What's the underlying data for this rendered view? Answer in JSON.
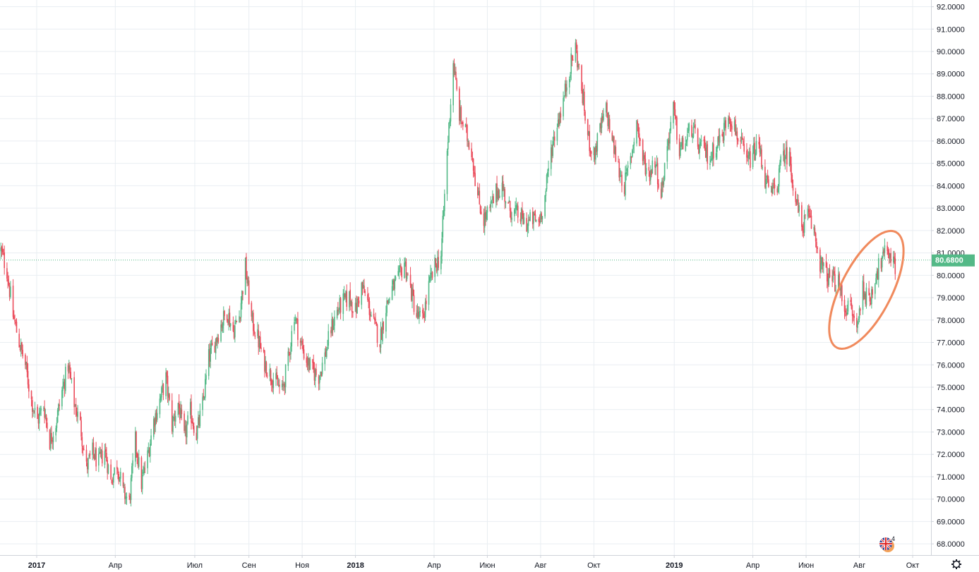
{
  "colors": {
    "up": "#53b987",
    "down": "#eb4d5c",
    "grid": "#e9eef2",
    "axis_line": "#cfd3da",
    "last_price_line": "#53b987",
    "annotation": "#f08a5d",
    "text": "#131722"
  },
  "last_price": {
    "value": 80.68,
    "label": "80.6800"
  },
  "flag_marker": {
    "icon": "uk-flag-icon",
    "count_label": "4"
  },
  "settings": {
    "icon": "gear-icon"
  },
  "chart_data": {
    "type": "candlestick",
    "x_axis": {
      "type": "date",
      "range": [
        "2016-11-20",
        "2019-10-22"
      ],
      "ticks": [
        {
          "date": "2017-01-01",
          "label": "2017",
          "bold": true
        },
        {
          "date": "2017-04-01",
          "label": "Апр",
          "bold": false
        },
        {
          "date": "2017-07-01",
          "label": "Июл",
          "bold": false
        },
        {
          "date": "2017-09-01",
          "label": "Сен",
          "bold": false
        },
        {
          "date": "2017-11-01",
          "label": "Ноя",
          "bold": false
        },
        {
          "date": "2018-01-01",
          "label": "2018",
          "bold": true
        },
        {
          "date": "2018-04-01",
          "label": "Апр",
          "bold": false
        },
        {
          "date": "2018-06-01",
          "label": "Июн",
          "bold": false
        },
        {
          "date": "2018-08-01",
          "label": "Авг",
          "bold": false
        },
        {
          "date": "2018-10-01",
          "label": "Окт",
          "bold": false
        },
        {
          "date": "2019-01-01",
          "label": "2019",
          "bold": true
        },
        {
          "date": "2019-04-01",
          "label": "Апр",
          "bold": false
        },
        {
          "date": "2019-06-01",
          "label": "Июн",
          "bold": false
        },
        {
          "date": "2019-08-01",
          "label": "Авг",
          "bold": false
        },
        {
          "date": "2019-10-01",
          "label": "Окт",
          "bold": false
        }
      ]
    },
    "y_axis": {
      "range": [
        67.5,
        92.3
      ],
      "position": "right",
      "ticks": [
        {
          "value": 68,
          "label": "68.0000"
        },
        {
          "value": 69,
          "label": "69.0000"
        },
        {
          "value": 70,
          "label": "70.0000"
        },
        {
          "value": 71,
          "label": "71.0000"
        },
        {
          "value": 72,
          "label": "72.0000"
        },
        {
          "value": 73,
          "label": "73.0000"
        },
        {
          "value": 74,
          "label": "74.0000"
        },
        {
          "value": 75,
          "label": "75.0000"
        },
        {
          "value": 76,
          "label": "76.0000"
        },
        {
          "value": 77,
          "label": "77.0000"
        },
        {
          "value": 78,
          "label": "78.0000"
        },
        {
          "value": 79,
          "label": "79.0000"
        },
        {
          "value": 80,
          "label": "80.0000"
        },
        {
          "value": 81,
          "label": "81.0000"
        },
        {
          "value": 82,
          "label": "82.0000"
        },
        {
          "value": 83,
          "label": "83.0000"
        },
        {
          "value": 84,
          "label": "84.0000"
        },
        {
          "value": 85,
          "label": "85.0000"
        },
        {
          "value": 86,
          "label": "86.0000"
        },
        {
          "value": 87,
          "label": "87.0000"
        },
        {
          "value": 88,
          "label": "88.0000"
        },
        {
          "value": 89,
          "label": "89.0000"
        },
        {
          "value": 90,
          "label": "90.0000"
        },
        {
          "value": 91,
          "label": "91.0000"
        },
        {
          "value": 92,
          "label": "92.0000"
        }
      ]
    },
    "grid": true,
    "price_path": [
      [
        "2016-11-21",
        81.1
      ],
      [
        "2016-11-28",
        80.2
      ],
      [
        "2016-12-05",
        78.2
      ],
      [
        "2016-12-12",
        77.0
      ],
      [
        "2016-12-19",
        76.0
      ],
      [
        "2016-12-26",
        74.4
      ],
      [
        "2017-01-02",
        73.5
      ],
      [
        "2017-01-09",
        74.2
      ],
      [
        "2017-01-16",
        72.6
      ],
      [
        "2017-01-23",
        73.4
      ],
      [
        "2017-01-30",
        74.8
      ],
      [
        "2017-02-06",
        76.0
      ],
      [
        "2017-02-13",
        74.3
      ],
      [
        "2017-02-20",
        73.3
      ],
      [
        "2017-02-27",
        71.4
      ],
      [
        "2017-03-06",
        72.1
      ],
      [
        "2017-03-13",
        71.6
      ],
      [
        "2017-03-20",
        72.2
      ],
      [
        "2017-03-27",
        70.8
      ],
      [
        "2017-04-03",
        71.6
      ],
      [
        "2017-04-10",
        70.3
      ],
      [
        "2017-04-17",
        69.9
      ],
      [
        "2017-04-24",
        72.6
      ],
      [
        "2017-05-01",
        70.7
      ],
      [
        "2017-05-08",
        71.9
      ],
      [
        "2017-05-15",
        73.5
      ],
      [
        "2017-05-22",
        74.4
      ],
      [
        "2017-05-29",
        75.4
      ],
      [
        "2017-06-05",
        73.3
      ],
      [
        "2017-06-12",
        74.3
      ],
      [
        "2017-06-19",
        72.7
      ],
      [
        "2017-06-26",
        73.9
      ],
      [
        "2017-07-03",
        72.9
      ],
      [
        "2017-07-10",
        74.2
      ],
      [
        "2017-07-17",
        76.3
      ],
      [
        "2017-07-24",
        77.0
      ],
      [
        "2017-07-31",
        77.8
      ],
      [
        "2017-08-07",
        78.4
      ],
      [
        "2017-08-14",
        77.5
      ],
      [
        "2017-08-21",
        78.2
      ],
      [
        "2017-08-28",
        80.4
      ],
      [
        "2017-09-04",
        78.0
      ],
      [
        "2017-09-11",
        77.2
      ],
      [
        "2017-09-18",
        76.2
      ],
      [
        "2017-09-25",
        75.6
      ],
      [
        "2017-10-02",
        75.2
      ],
      [
        "2017-10-09",
        74.8
      ],
      [
        "2017-10-16",
        76.2
      ],
      [
        "2017-10-23",
        78.3
      ],
      [
        "2017-10-30",
        77.0
      ],
      [
        "2017-11-06",
        76.2
      ],
      [
        "2017-11-13",
        75.7
      ],
      [
        "2017-11-20",
        75.5
      ],
      [
        "2017-11-27",
        76.4
      ],
      [
        "2017-12-04",
        77.6
      ],
      [
        "2017-12-11",
        78.4
      ],
      [
        "2017-12-18",
        78.8
      ],
      [
        "2017-12-25",
        79.0
      ],
      [
        "2018-01-01",
        78.4
      ],
      [
        "2018-01-08",
        79.5
      ],
      [
        "2018-01-15",
        78.8
      ],
      [
        "2018-01-22",
        77.8
      ],
      [
        "2018-01-29",
        77.1
      ],
      [
        "2018-02-05",
        78.6
      ],
      [
        "2018-02-12",
        79.4
      ],
      [
        "2018-02-19",
        79.8
      ],
      [
        "2018-02-26",
        80.6
      ],
      [
        "2018-03-05",
        79.4
      ],
      [
        "2018-03-12",
        78.2
      ],
      [
        "2018-03-19",
        78.0
      ],
      [
        "2018-03-26",
        79.5
      ],
      [
        "2018-04-02",
        80.4
      ],
      [
        "2018-04-09",
        80.9
      ],
      [
        "2018-04-16",
        85.5
      ],
      [
        "2018-04-23",
        89.5
      ],
      [
        "2018-04-30",
        87.2
      ],
      [
        "2018-05-07",
        86.4
      ],
      [
        "2018-05-14",
        85.6
      ],
      [
        "2018-05-21",
        83.5
      ],
      [
        "2018-05-28",
        82.5
      ],
      [
        "2018-06-04",
        82.9
      ],
      [
        "2018-06-11",
        83.7
      ],
      [
        "2018-06-18",
        84.0
      ],
      [
        "2018-06-25",
        83.0
      ],
      [
        "2018-07-02",
        82.8
      ],
      [
        "2018-07-09",
        82.6
      ],
      [
        "2018-07-16",
        82.3
      ],
      [
        "2018-07-23",
        82.5
      ],
      [
        "2018-07-30",
        82.4
      ],
      [
        "2018-08-06",
        83.5
      ],
      [
        "2018-08-13",
        85.6
      ],
      [
        "2018-08-20",
        86.8
      ],
      [
        "2018-08-27",
        87.8
      ],
      [
        "2018-09-03",
        89.2
      ],
      [
        "2018-09-10",
        90.2
      ],
      [
        "2018-09-17",
        88.3
      ],
      [
        "2018-09-24",
        86.2
      ],
      [
        "2018-10-01",
        85.3
      ],
      [
        "2018-10-08",
        86.5
      ],
      [
        "2018-10-15",
        87.4
      ],
      [
        "2018-10-22",
        86.0
      ],
      [
        "2018-10-29",
        84.8
      ],
      [
        "2018-11-05",
        84.0
      ],
      [
        "2018-11-12",
        85.2
      ],
      [
        "2018-11-19",
        86.9
      ],
      [
        "2018-11-26",
        85.2
      ],
      [
        "2018-12-03",
        84.5
      ],
      [
        "2018-12-10",
        85.2
      ],
      [
        "2018-12-17",
        83.6
      ],
      [
        "2018-12-24",
        85.8
      ],
      [
        "2018-12-31",
        87.4
      ],
      [
        "2019-01-07",
        85.6
      ],
      [
        "2019-01-14",
        86.0
      ],
      [
        "2019-01-21",
        86.6
      ],
      [
        "2019-01-28",
        85.8
      ],
      [
        "2019-02-04",
        85.6
      ],
      [
        "2019-02-11",
        85.2
      ],
      [
        "2019-02-18",
        85.9
      ],
      [
        "2019-02-25",
        86.2
      ],
      [
        "2019-03-04",
        87.3
      ],
      [
        "2019-03-11",
        86.6
      ],
      [
        "2019-03-18",
        85.9
      ],
      [
        "2019-03-25",
        85.0
      ],
      [
        "2019-04-01",
        85.4
      ],
      [
        "2019-04-08",
        85.8
      ],
      [
        "2019-04-15",
        84.3
      ],
      [
        "2019-04-22",
        83.6
      ],
      [
        "2019-04-29",
        84.1
      ],
      [
        "2019-05-06",
        85.5
      ],
      [
        "2019-05-13",
        85.2
      ],
      [
        "2019-05-20",
        83.4
      ],
      [
        "2019-05-27",
        82.2
      ],
      [
        "2019-06-03",
        82.6
      ],
      [
        "2019-06-10",
        82.0
      ],
      [
        "2019-06-17",
        80.6
      ],
      [
        "2019-06-24",
        80.0
      ],
      [
        "2019-07-01",
        79.8
      ],
      [
        "2019-07-08",
        79.6
      ],
      [
        "2019-07-15",
        78.6
      ],
      [
        "2019-07-22",
        78.5
      ],
      [
        "2019-07-29",
        77.6
      ],
      [
        "2019-08-05",
        79.5
      ],
      [
        "2019-08-12",
        78.7
      ],
      [
        "2019-08-19",
        80.0
      ],
      [
        "2019-08-26",
        80.6
      ],
      [
        "2019-09-02",
        81.2
      ],
      [
        "2019-09-09",
        80.6
      ]
    ]
  }
}
